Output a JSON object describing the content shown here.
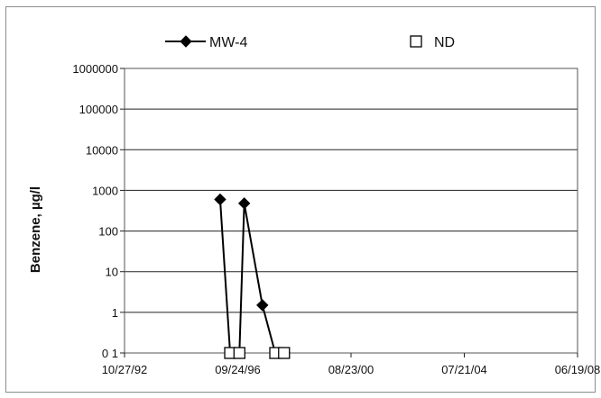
{
  "chart_data": {
    "type": "line",
    "ylabel": "Benzene, µg/l",
    "y_scale": "log",
    "ylim": [
      0.1,
      1000000
    ],
    "y_tick_labels": [
      "1000000",
      "100000",
      "10000",
      "1000",
      "100",
      "10",
      "1",
      "0 1"
    ],
    "x_tick_labels": [
      "10/27/92",
      "09/24/96",
      "08/23/00",
      "07/21/04",
      "06/19/08"
    ],
    "xlim": [
      "1992-10-27",
      "2008-06-19"
    ],
    "grid": "horizontal",
    "legend_placement": "top",
    "series": [
      {
        "name": "MW-4",
        "marker": "diamond",
        "color": "#000000",
        "points": [
          {
            "x": "1996-02-15",
            "y": 600
          },
          {
            "x": "1996-06-20",
            "y": 0.1
          },
          {
            "x": "1996-10-15",
            "y": 0.1
          },
          {
            "x": "1996-12-15",
            "y": 480
          },
          {
            "x": "1997-08-01",
            "y": 1.5
          },
          {
            "x": "1998-01-10",
            "y": 0.1
          },
          {
            "x": "1998-05-01",
            "y": 0.1
          }
        ]
      },
      {
        "name": "ND",
        "marker": "open-square",
        "color": "#000000",
        "points": [
          {
            "x": "1996-06-20",
            "y": 0.1
          },
          {
            "x": "1996-10-15",
            "y": 0.1
          },
          {
            "x": "1998-01-10",
            "y": 0.1
          },
          {
            "x": "1998-05-01",
            "y": 0.1
          }
        ]
      }
    ]
  }
}
